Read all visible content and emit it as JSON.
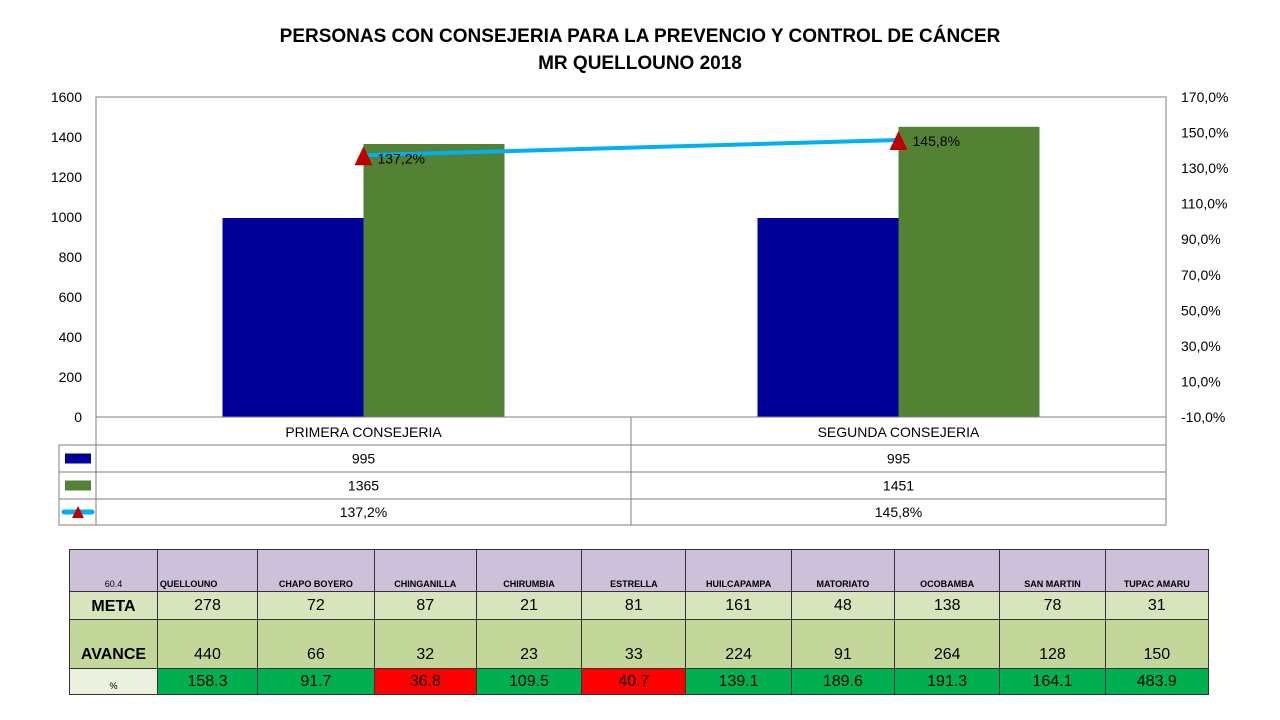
{
  "chart_data": {
    "type": "bar",
    "title": "PERSONAS CON CONSEJERIA PARA LA PREVENCIO Y CONTROL DE CÁNCER",
    "subtitle": "MR QUELLOUNO 2018",
    "categories": [
      "PRIMERA CONSEJERIA",
      "SEGUNDA CONSEJERIA"
    ],
    "series": [
      {
        "values": [
          995,
          995
        ],
        "color": "#000099",
        "kind": "bar"
      },
      {
        "values": [
          1365,
          1451
        ],
        "color": "#548235",
        "kind": "bar"
      },
      {
        "values": [
          137.2,
          145.8
        ],
        "color": "#00b0f0",
        "marker_color": "#c00000",
        "kind": "line",
        "axis": "right"
      }
    ],
    "data_labels": [
      "137,2%",
      "145,8%"
    ],
    "ylim": [
      0,
      1600
    ],
    "yticks": [
      "1600",
      "1400",
      "1200",
      "1000",
      "800",
      "600",
      "400",
      "200",
      "0"
    ],
    "y2lim": [
      -10,
      170
    ],
    "y2ticks": [
      "170,0%",
      "150,0%",
      "130,0%",
      "110,0%",
      "90,0%",
      "70,0%",
      "50,0%",
      "30,0%",
      "10,0%",
      "-10,0%"
    ],
    "data_table": [
      [
        "995",
        "995"
      ],
      [
        "1365",
        "1451"
      ],
      [
        "137,2%",
        "145,8%"
      ]
    ],
    "grid": false
  },
  "table": {
    "corner": "60.4",
    "columns": [
      "QUELLOUNO",
      "CHAPO BOYERO",
      "CHINGANILLA",
      "CHIRUMBIA",
      "ESTRELLA",
      "HUILCAPAMPA",
      "MATORIATO",
      "OCOBAMBA",
      "SAN MARTIN",
      "TUPAC AMARU"
    ],
    "rows": [
      {
        "label": "META",
        "values": [
          "278",
          "72",
          "87",
          "21",
          "81",
          "161",
          "48",
          "138",
          "78",
          "31"
        ]
      },
      {
        "label": "AVANCE",
        "values": [
          "440",
          "66",
          "32",
          "23",
          "33",
          "224",
          "91",
          "264",
          "128",
          "150"
        ]
      },
      {
        "label": "%",
        "values": [
          "158.3",
          "91.7",
          "36.8",
          "109.5",
          "40.7",
          "139.1",
          "189.6",
          "191.3",
          "164.1",
          "483.9"
        ]
      }
    ],
    "pct_colors": {
      "good": "#00b050",
      "bad": "#ff0000"
    },
    "pct_status": [
      "good",
      "good",
      "bad",
      "good",
      "bad",
      "good",
      "good",
      "good",
      "good",
      "good"
    ]
  }
}
